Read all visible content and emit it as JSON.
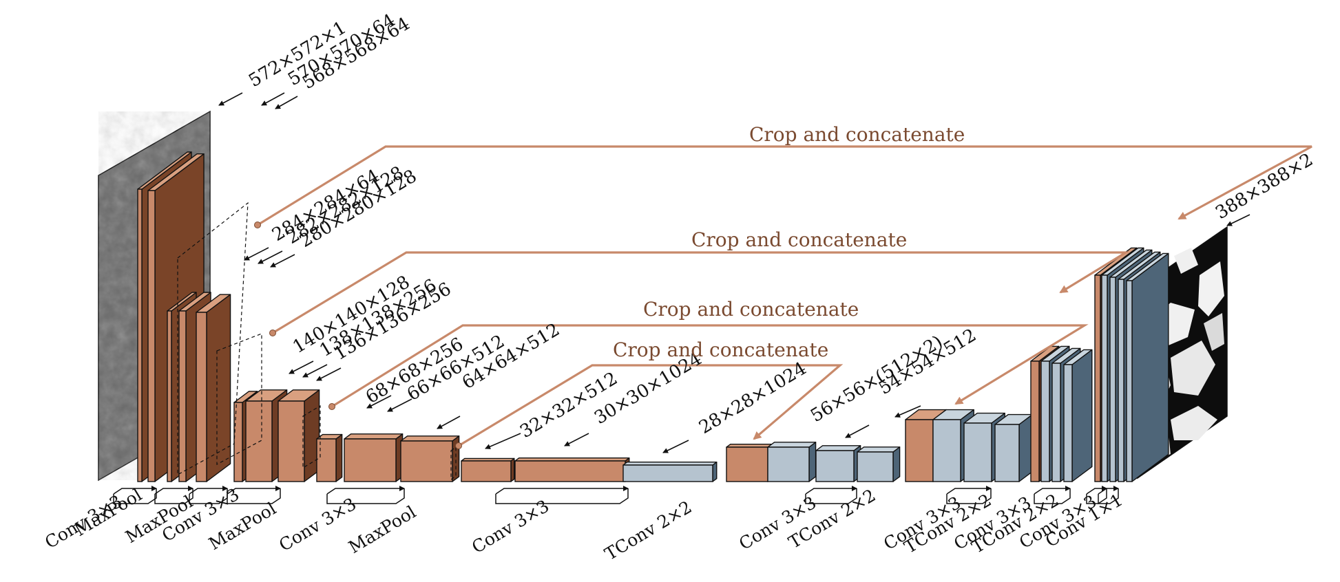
{
  "colors": {
    "enc_front": "#c8896a",
    "enc_side": "#6e3c24",
    "enc_top": "#d9a080",
    "dec_front": "#b5c3cf",
    "dec_side": "#4e6578",
    "dec_top": "#c9d5de",
    "dark_front": "#7a4428",
    "skip": "#c8896a",
    "crop_text": "#7a4a30",
    "outline": "#111111"
  },
  "dimension_labels": [
    "572×572×1",
    "570×570×64",
    "568×568×64",
    "284×284×64",
    "282×282×128",
    "280×280×128",
    "140×140×128",
    "138×138×256",
    "136×136×256",
    "68×68×256",
    "66×66×512",
    "64×64×512",
    "32×32×512",
    "30×30×1024",
    "28×28×1024",
    "56×56×(512×2)",
    "54×54×512",
    "388×388×2"
  ],
  "crop_labels": [
    "Crop and concatenate",
    "Crop and concatenate",
    "Crop and concatenate",
    "Crop and concatenate"
  ],
  "operation_labels": [
    "Conv 3×3",
    "MaxPool",
    "MaxPool",
    "Conv 3×3",
    "MaxPool",
    "Conv 3×3",
    "MaxPool",
    "Conv 3×3",
    "TConv 2×2",
    "Conv 3×3",
    "TConv 2×2",
    "Conv 3×3",
    "TConv 2×2",
    "Conv 3×3",
    "TConv 2×2",
    "Conv 3×3",
    "Conv 1×1"
  ]
}
